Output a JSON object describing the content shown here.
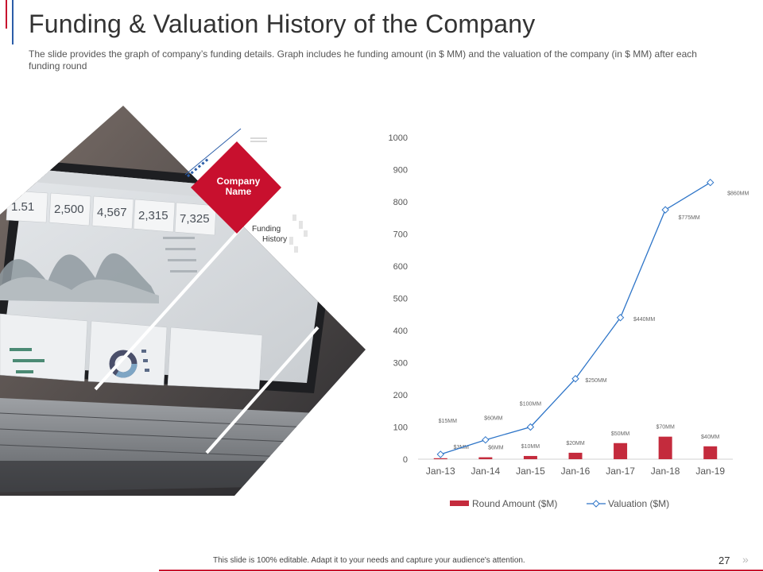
{
  "slide": {
    "title": "Funding & Valuation History of the Company",
    "subtitle": "The slide provides  the graph  of company’s funding details. Graph includes he funding  amount  (in $ MM) and the valuation  of the company  (in $ MM) after each funding round",
    "badge_line1": "Company",
    "badge_line2": "Name",
    "funding_line1": "Funding",
    "funding_line2": "History",
    "footer_note": "This slide is 100% editable.  Adapt it to your needs and capture your audience's attention.",
    "page_number": "27",
    "next_glyph": "»"
  },
  "photo_stats": [
    "1.51",
    "2,500",
    "4,567",
    "2,315",
    "7,325"
  ],
  "colors": {
    "red": "#c8102e",
    "bar_red": "#c42b3d",
    "line_blue": "#2e75c8",
    "blue_accent": "#2b5da8"
  },
  "chart_data": {
    "type": "bar",
    "categories": [
      "Jan-13",
      "Jan-14",
      "Jan-15",
      "Jan-16",
      "Jan-17",
      "Jan-18",
      "Jan-19"
    ],
    "ylim": [
      0,
      1000
    ],
    "yticks": [
      "0",
      "100",
      "200",
      "300",
      "400",
      "500",
      "600",
      "700",
      "800",
      "900",
      "1000"
    ],
    "series": [
      {
        "name": "Round Amount ($M)",
        "type": "bar",
        "values": [
          3,
          6,
          10,
          20,
          50,
          70,
          40
        ],
        "labels": [
          "$3MM",
          "$6MM",
          "$10MM",
          "$20MM",
          "$50MM",
          "$70MM",
          "$40MM"
        ]
      },
      {
        "name": "Valuation ($M)",
        "type": "line",
        "values": [
          15,
          60,
          100,
          250,
          440,
          775,
          860
        ],
        "labels": [
          "$15MM",
          "$60MM",
          "$100MM",
          "$250MM",
          "$440MM",
          "$775MM",
          "$860MM"
        ]
      }
    ],
    "legend_position": "bottom"
  }
}
